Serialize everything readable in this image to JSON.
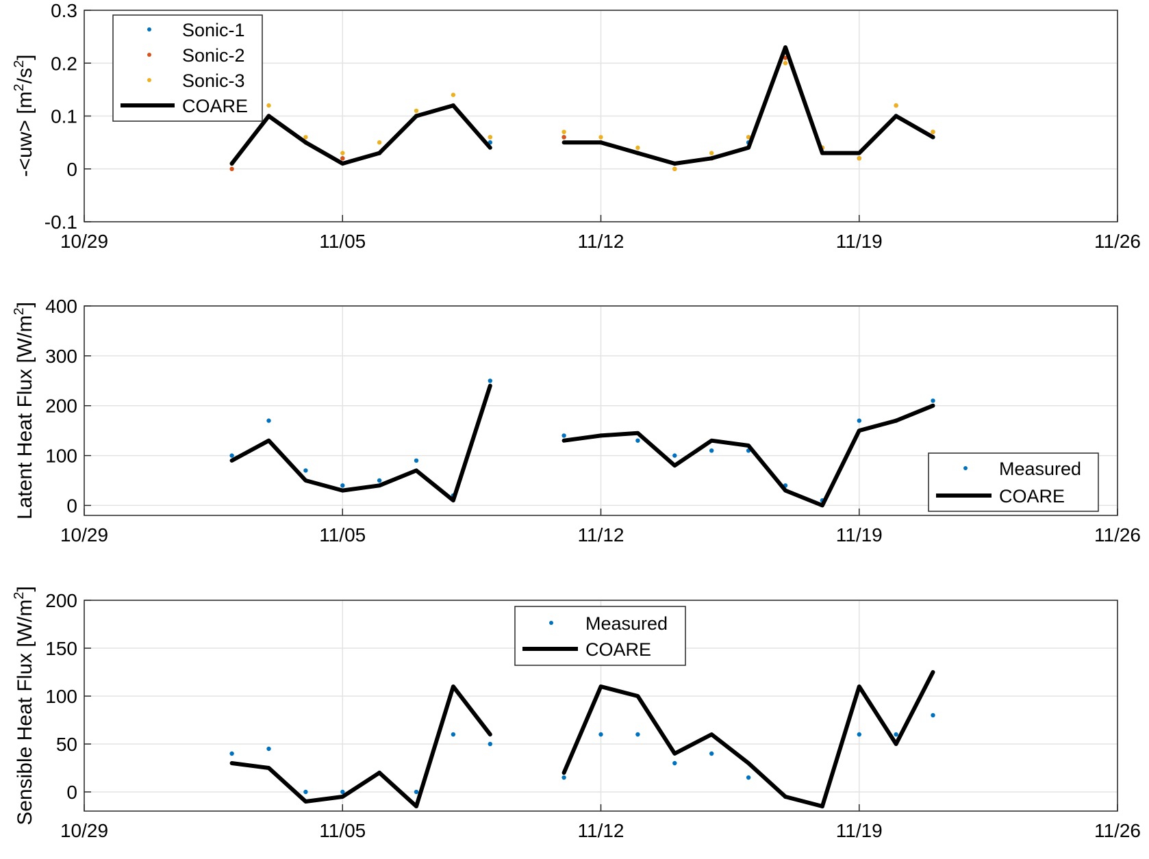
{
  "colors": {
    "sonic1": "#0072bd",
    "sonic2": "#d95319",
    "sonic3": "#edb120",
    "measured": "#0072bd",
    "coare": "#000000",
    "grid": "#e3e3e3",
    "axis": "#262626"
  },
  "x_tick_labels": [
    "10/29",
    "11/05",
    "11/12",
    "11/19",
    "11/26"
  ],
  "chart_data": [
    {
      "type": "line",
      "ylabel": "-<uw> [m²/s²]",
      "xlim": [
        "10/29",
        "11/26"
      ],
      "ylim": [
        -0.1,
        0.3
      ],
      "y_ticks": [
        "-0.1",
        "0",
        "0.1",
        "0.2",
        "0.3"
      ],
      "grid": true,
      "legend_position": "top-left",
      "legend": [
        "Sonic-1",
        "Sonic-2",
        "Sonic-3",
        "COARE"
      ],
      "x": [
        "11/02",
        "11/03",
        "11/04",
        "11/05",
        "11/06",
        "11/07",
        "11/08",
        "11/09",
        "11/10",
        "11/11",
        "11/12",
        "11/13",
        "11/14",
        "11/15",
        "11/16",
        "11/17",
        "11/18",
        "11/19",
        "11/20",
        "11/21"
      ],
      "series": [
        {
          "name": "Sonic-1",
          "style": "markers",
          "values": [
            0.01,
            0.1,
            0.05,
            0.02,
            0.03,
            0.1,
            0.12,
            0.05,
            null,
            0.06,
            0.05,
            0.03,
            0.01,
            0.02,
            0.05,
            0.22,
            0.04,
            0.02,
            0.1,
            0.06
          ]
        },
        {
          "name": "Sonic-2",
          "style": "markers",
          "values": [
            0.0,
            0.1,
            0.05,
            0.02,
            0.03,
            0.1,
            0.12,
            0.06,
            null,
            0.06,
            0.05,
            0.03,
            0.0,
            0.02,
            0.06,
            0.21,
            0.04,
            0.02,
            0.12,
            0.07
          ]
        },
        {
          "name": "Sonic-3",
          "style": "markers",
          "values": [
            0.01,
            0.12,
            0.06,
            0.03,
            0.05,
            0.11,
            0.14,
            0.06,
            null,
            0.07,
            0.06,
            0.04,
            0.0,
            0.03,
            0.06,
            0.2,
            0.04,
            0.02,
            0.12,
            0.07
          ]
        },
        {
          "name": "COARE",
          "style": "line",
          "values": [
            0.01,
            0.1,
            0.05,
            0.01,
            0.03,
            0.1,
            0.12,
            0.04,
            null,
            0.05,
            0.05,
            0.03,
            0.01,
            0.02,
            0.04,
            0.23,
            0.03,
            0.03,
            0.1,
            0.06
          ]
        }
      ]
    },
    {
      "type": "line",
      "ylabel": "Latent Heat Flux [W/m²]",
      "xlim": [
        "10/29",
        "11/26"
      ],
      "ylim": [
        -20,
        400
      ],
      "y_ticks": [
        "0",
        "100",
        "200",
        "300",
        "400"
      ],
      "grid": true,
      "legend_position": "bottom-right",
      "legend": [
        "Measured",
        "COARE"
      ],
      "x": [
        "11/02",
        "11/03",
        "11/04",
        "11/05",
        "11/06",
        "11/07",
        "11/08",
        "11/09",
        "11/10",
        "11/11",
        "11/12",
        "11/13",
        "11/14",
        "11/15",
        "11/16",
        "11/17",
        "11/18",
        "11/19",
        "11/20",
        "11/21"
      ],
      "series": [
        {
          "name": "Measured",
          "style": "markers",
          "values": [
            100,
            170,
            70,
            40,
            50,
            90,
            20,
            250,
            null,
            140,
            140,
            130,
            100,
            110,
            110,
            40,
            10,
            170,
            170,
            210
          ]
        },
        {
          "name": "COARE",
          "style": "line",
          "values": [
            90,
            130,
            50,
            30,
            40,
            70,
            10,
            240,
            null,
            130,
            140,
            145,
            80,
            130,
            120,
            30,
            0,
            150,
            170,
            200
          ]
        }
      ]
    },
    {
      "type": "line",
      "ylabel": "Sensible Heat Flux [W/m²]",
      "xlim": [
        "10/29",
        "11/26"
      ],
      "ylim": [
        -20,
        200
      ],
      "y_ticks": [
        "0",
        "50",
        "100",
        "150",
        "200"
      ],
      "grid": true,
      "legend_position": "top-center",
      "legend": [
        "Measured",
        "COARE"
      ],
      "x": [
        "11/02",
        "11/03",
        "11/04",
        "11/05",
        "11/06",
        "11/07",
        "11/08",
        "11/09",
        "11/10",
        "11/11",
        "11/12",
        "11/13",
        "11/14",
        "11/15",
        "11/16",
        "11/17",
        "11/18",
        "11/19",
        "11/20",
        "11/21"
      ],
      "series": [
        {
          "name": "Measured",
          "style": "markers",
          "values": [
            40,
            45,
            0,
            0,
            20,
            0,
            60,
            50,
            null,
            15,
            60,
            60,
            30,
            40,
            15,
            -5,
            -15,
            60,
            60,
            80
          ]
        },
        {
          "name": "COARE",
          "style": "line",
          "values": [
            30,
            25,
            -10,
            -5,
            20,
            -15,
            110,
            60,
            null,
            20,
            110,
            100,
            40,
            60,
            30,
            -5,
            -15,
            110,
            50,
            125
          ]
        }
      ]
    }
  ]
}
